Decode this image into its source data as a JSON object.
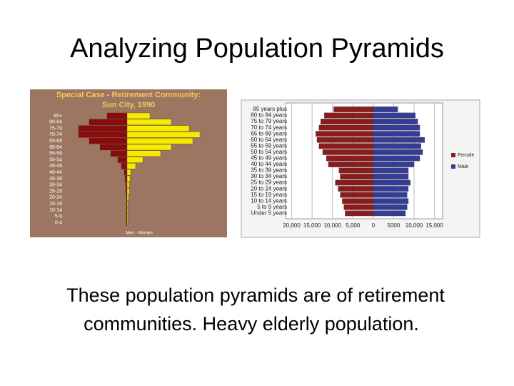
{
  "slide": {
    "title": "Analyzing Population Pyramids",
    "text": [
      "These population pyramids are of retirement",
      "communities.  Heavy elderly population."
    ]
  },
  "chart_data": [
    {
      "type": "pyramid",
      "title": [
        "Special Case - Retirement Community:",
        "Sun City, 1990"
      ],
      "categories": [
        "85+",
        "80-84",
        "75-79",
        "70-74",
        "65-69",
        "60-64",
        "55-59",
        "50-54",
        "45-49",
        "40-44",
        "35-39",
        "30-34",
        "25-29",
        "20-24",
        "15-19",
        "10-14",
        "5-9",
        "0-4"
      ],
      "xlabel": "Men - Women",
      "series": [
        {
          "name": "Men",
          "color": "#8b0a0a",
          "values": [
            2.8,
            5.3,
            6.8,
            6.8,
            5.3,
            3.8,
            2.3,
            1.3,
            0.8,
            0.4,
            0.3,
            0.2,
            0.2,
            0.1,
            0.1,
            0.1,
            0.1,
            0.1
          ]
        },
        {
          "name": "Women",
          "color": "#f5ea00",
          "values": [
            3.2,
            6.2,
            8.7,
            10.2,
            9.2,
            6.2,
            4.7,
            2.2,
            1.2,
            0.5,
            0.4,
            0.3,
            0.3,
            0.2,
            0.1,
            0.1,
            0.1,
            0.1
          ]
        }
      ]
    },
    {
      "type": "pyramid",
      "legend": "right",
      "categories": [
        "85 years plus",
        "80 to 84 years",
        "75 to 79 years",
        "70 to 74 years",
        "65 to 69 years",
        "60 to 64 years",
        "55 to 59 years",
        "50 to 54 years",
        "45 to 49 years",
        "40 to 44 years",
        "35 to 39 years",
        "30 to 34 years",
        "25 to 29 years",
        "20 to 24 years",
        "15 to 19 years",
        "10 to 14 years",
        "5 to 9 years",
        "Under 5 years"
      ],
      "xlim": [
        -21500,
        17000
      ],
      "xticks": [
        {
          "value": -20000,
          "label": "20,000"
        },
        {
          "value": -15000,
          "label": "15,000"
        },
        {
          "value": -10000,
          "label": "10,000"
        },
        {
          "value": -5000,
          "label": "5,000"
        },
        0,
        5000,
        {
          "value": 10000,
          "label": "10,000"
        },
        {
          "value": 15000,
          "label": "15,000"
        }
      ],
      "grid": true,
      "series": [
        {
          "name": "Female",
          "color": "#8b1c1c",
          "values": [
            9700,
            12000,
            12900,
            13300,
            14100,
            13800,
            13300,
            12400,
            11500,
            11000,
            8400,
            8100,
            9300,
            8600,
            8100,
            7600,
            7200,
            6900
          ]
        },
        {
          "name": "Male",
          "color": "#343c96",
          "values": [
            6000,
            10300,
            10900,
            11400,
            11400,
            12600,
            11700,
            12100,
            11400,
            10000,
            8600,
            8600,
            9100,
            8600,
            8300,
            8600,
            8300,
            7900
          ]
        }
      ]
    }
  ]
}
